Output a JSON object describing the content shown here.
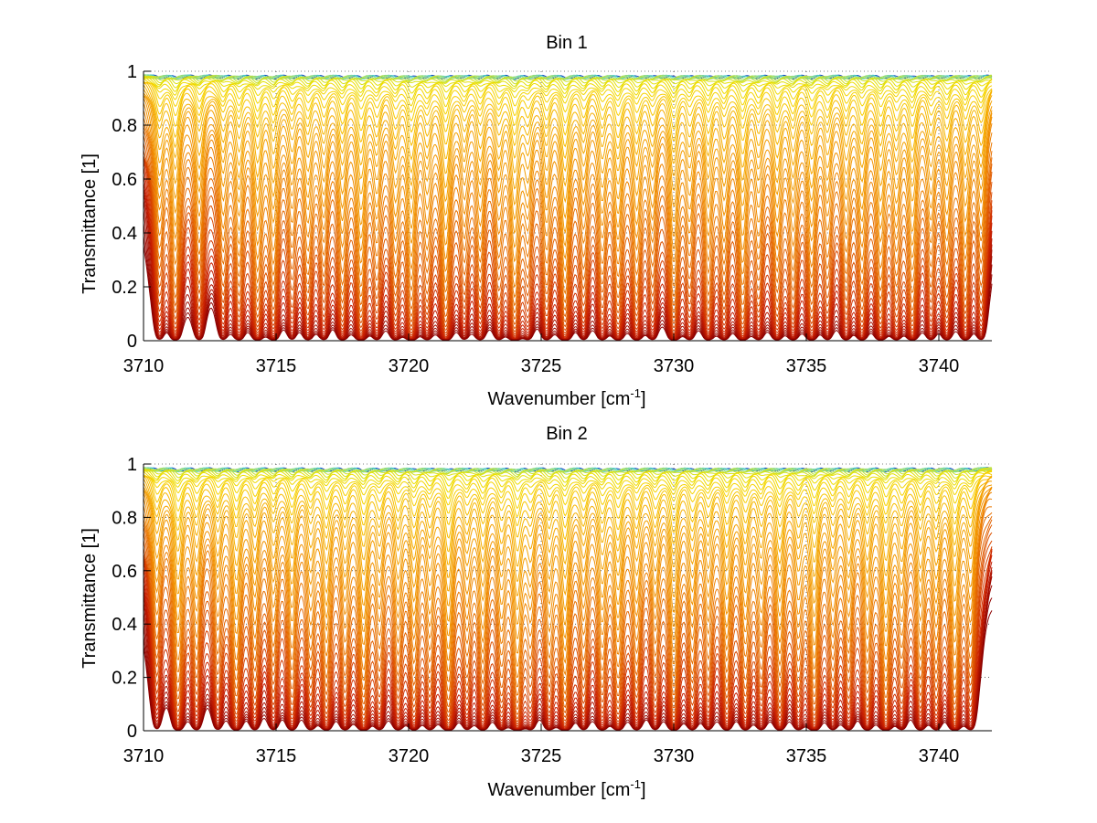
{
  "chart_data": [
    {
      "type": "line",
      "title": "Bin 1",
      "xlabel": "Wavenumber [cm",
      "xlabel_sup": "-1",
      "xlabel_close": "]",
      "ylabel": "Transmittance [1]",
      "xlim": [
        3710,
        3742
      ],
      "ylim": [
        0,
        1
      ],
      "xticks": [
        3710,
        3715,
        3720,
        3725,
        3730,
        3735,
        3740
      ],
      "xtick_labels": [
        "3710",
        "3715",
        "3720",
        "3725",
        "3730",
        "3735",
        "3740"
      ],
      "yticks": [
        0,
        0.2,
        0.4,
        0.6,
        0.8,
        1
      ],
      "ytick_labels": [
        "0",
        "0.2",
        "0.4",
        "0.6",
        "0.8",
        "1"
      ],
      "grid": "dotted",
      "colormap": [
        "#8b0000",
        "#c81e00",
        "#e05a00",
        "#f08a00",
        "#f5a800",
        "#f8d000",
        "#eae000",
        "#bde23a",
        "#7fd9a0",
        "#30c8d8",
        "#1040c0"
      ],
      "series_count": 46,
      "absorption_lines_x": [
        3710.6,
        3711.2,
        3712.1,
        3713.0,
        3713.6,
        3714.3,
        3714.9,
        3715.6,
        3716.2,
        3716.8,
        3717.5,
        3718.2,
        3718.8,
        3719.5,
        3720.1,
        3720.7,
        3721.4,
        3722.1,
        3722.7,
        3723.4,
        3724.0,
        3724.5,
        3725.2,
        3725.9,
        3726.6,
        3727.3,
        3727.9,
        3728.6,
        3729.2,
        3730.0,
        3730.6,
        3731.3,
        3731.9,
        3732.6,
        3733.2,
        3733.9,
        3734.5,
        3735.2,
        3735.8,
        3736.5,
        3737.1,
        3737.8,
        3738.4,
        3739.0,
        3739.7,
        3740.3,
        3741.0,
        3741.6
      ],
      "absorption_lines_strength": [
        0.55,
        0.8,
        0.6,
        0.55,
        0.65,
        0.8,
        0.7,
        0.5,
        0.6,
        0.55,
        0.7,
        0.85,
        0.55,
        0.6,
        0.9,
        0.55,
        0.95,
        0.5,
        0.6,
        0.55,
        0.95,
        0.5,
        0.6,
        0.95,
        0.55,
        0.6,
        0.75,
        0.7,
        0.55,
        0.85,
        0.55,
        0.7,
        0.6,
        0.85,
        0.55,
        0.7,
        0.65,
        0.75,
        0.55,
        0.6,
        0.7,
        0.75,
        0.6,
        0.8,
        0.55,
        0.65,
        0.7,
        0.6
      ]
    },
    {
      "type": "line",
      "title": "Bin 2",
      "xlabel": "Wavenumber [cm",
      "xlabel_sup": "-1",
      "xlabel_close": "]",
      "ylabel": "Transmittance [1]",
      "xlim": [
        3710,
        3742
      ],
      "ylim": [
        0,
        1
      ],
      "xticks": [
        3710,
        3715,
        3720,
        3725,
        3730,
        3735,
        3740
      ],
      "xtick_labels": [
        "3710",
        "3715",
        "3720",
        "3725",
        "3730",
        "3735",
        "3740"
      ],
      "yticks": [
        0,
        0.2,
        0.4,
        0.6,
        0.8,
        1
      ],
      "ytick_labels": [
        "0",
        "0.2",
        "0.4",
        "0.6",
        "0.8",
        "1"
      ],
      "grid": "dotted",
      "colormap": [
        "#8b0000",
        "#c81e00",
        "#e05a00",
        "#f08a00",
        "#f5a800",
        "#f8d000",
        "#eae000",
        "#bde23a",
        "#7fd9a0",
        "#30c8d8",
        "#1040c0"
      ],
      "series_count": 46,
      "absorption_lines_x": [
        3710.5,
        3711.3,
        3712.0,
        3712.8,
        3713.5,
        3714.2,
        3714.9,
        3715.6,
        3716.3,
        3716.9,
        3717.6,
        3718.3,
        3718.9,
        3719.6,
        3720.2,
        3720.8,
        3721.5,
        3722.2,
        3722.8,
        3723.5,
        3724.1,
        3724.6,
        3725.3,
        3725.9,
        3726.6,
        3727.3,
        3727.9,
        3728.6,
        3729.3,
        3730.0,
        3730.7,
        3731.3,
        3732.0,
        3732.7,
        3733.3,
        3734.0,
        3734.7,
        3735.3,
        3736.0,
        3736.6,
        3737.3,
        3738.0,
        3738.6,
        3739.3,
        3739.9,
        3740.6,
        3741.2
      ],
      "absorption_lines_strength": [
        0.5,
        0.85,
        0.6,
        0.55,
        0.8,
        0.6,
        0.55,
        0.7,
        0.55,
        0.75,
        0.6,
        0.9,
        0.55,
        0.6,
        0.7,
        0.55,
        0.95,
        0.5,
        0.7,
        0.6,
        0.95,
        0.5,
        0.6,
        0.95,
        0.55,
        0.65,
        0.75,
        0.6,
        0.55,
        0.85,
        0.6,
        0.55,
        0.7,
        0.65,
        0.55,
        0.75,
        0.55,
        0.9,
        0.55,
        0.6,
        0.7,
        0.9,
        0.55,
        0.65,
        0.6,
        0.9,
        0.6
      ]
    }
  ]
}
